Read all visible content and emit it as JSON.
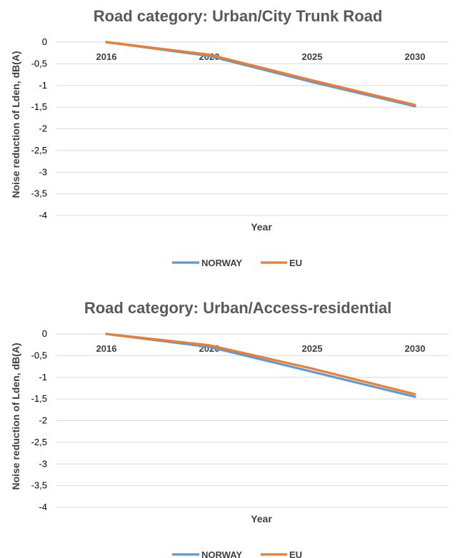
{
  "colors": {
    "norway": "#5b9bd5",
    "eu": "#ed7d31"
  },
  "chart_data": [
    {
      "type": "line",
      "title": "Road category: Urban/City Trunk Road",
      "xlabel": "Year",
      "ylabel": "Noise reduction of Lden, dB(A)",
      "categories": [
        "2016",
        "2020",
        "2025",
        "2030"
      ],
      "yticks": [
        "0",
        "-0,5",
        "-1",
        "-1,5",
        "-2",
        "-2,5",
        "-3",
        "-3,5",
        "-4"
      ],
      "ylim": [
        -4,
        0
      ],
      "grid": true,
      "legend": "bottom",
      "series": [
        {
          "name": "NORWAY",
          "values": [
            0,
            -0.32,
            -0.92,
            -1.48
          ]
        },
        {
          "name": "EU",
          "values": [
            0,
            -0.29,
            -0.88,
            -1.45
          ]
        }
      ]
    },
    {
      "type": "line",
      "title": "Road category: Urban/Access-residential",
      "xlabel": "Year",
      "ylabel": "Noise reduction of Lden, dB(A)",
      "categories": [
        "2016",
        "2020",
        "2025",
        "2030"
      ],
      "yticks": [
        "0",
        "-0,5",
        "-1",
        "-1,5",
        "-2",
        "-2,5",
        "-3",
        "-3,5",
        "-4"
      ],
      "ylim": [
        -4,
        0
      ],
      "grid": true,
      "legend": "bottom",
      "series": [
        {
          "name": "NORWAY",
          "values": [
            0,
            -0.3,
            -0.87,
            -1.45
          ]
        },
        {
          "name": "EU",
          "values": [
            0,
            -0.26,
            -0.8,
            -1.39
          ]
        }
      ]
    }
  ]
}
